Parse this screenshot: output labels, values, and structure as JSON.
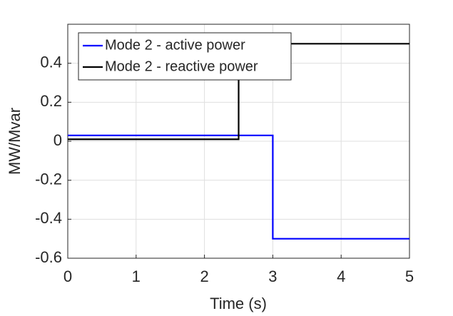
{
  "chart_data": {
    "type": "line",
    "xlabel": "Time (s)",
    "ylabel": "MW/Mvar",
    "xlim": [
      0,
      5
    ],
    "xticks": [
      0,
      1,
      2,
      3,
      4,
      5
    ],
    "ylim": [
      -0.6,
      0.6
    ],
    "yticks": [
      -0.6,
      -0.4,
      -0.2,
      0,
      0.2,
      0.4
    ],
    "grid": true,
    "legend": "upper left",
    "series": [
      {
        "name": "Mode 2 - active power",
        "color": "#0000ff",
        "x": [
          0,
          3,
          3,
          5
        ],
        "values": [
          0.03,
          0.03,
          -0.5,
          -0.5
        ]
      },
      {
        "name": "Mode 2 - reactive power",
        "color": "#000000",
        "x": [
          0,
          2.5,
          2.5,
          5
        ],
        "values": [
          0.01,
          0.01,
          0.5,
          0.5
        ]
      }
    ]
  }
}
